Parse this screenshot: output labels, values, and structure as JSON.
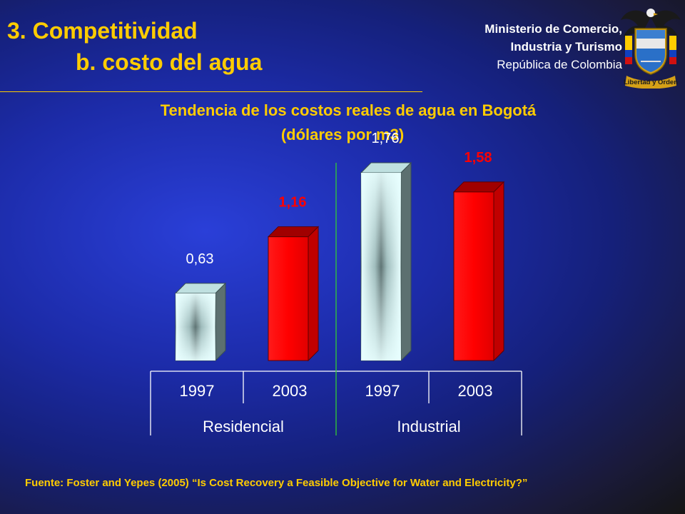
{
  "slide": {
    "title": "3. Competitividad",
    "subtitle": "b. costo del agua",
    "ministry_line1": "Ministerio de Comercio,",
    "ministry_line2": "Industria y Turismo",
    "ministry_line3": "República de Colombia",
    "crest_motto": "Libertad y Orden",
    "source": "Fuente: Foster and Yepes (2005) “Is Cost Recovery a Feasible Objective for Water and Electricity?”"
  },
  "colors": {
    "title": "#ffcc00",
    "series_1997": "#ccffff",
    "series_2003": "#ff0000",
    "label_2003": "#ff0000"
  },
  "chart_data": {
    "type": "bar",
    "title_line1": "Tendencia de los costos reales de agua en Bogotá",
    "title_line2": "(dólares por m3)",
    "groups": [
      "Residencial",
      "Industrial"
    ],
    "categories": [
      "1997",
      "2003",
      "1997",
      "2003"
    ],
    "values": [
      0.63,
      1.16,
      1.76,
      1.58
    ],
    "labels": [
      "0,63",
      "1,16",
      "1,76",
      "1,58"
    ],
    "grid": false,
    "ylim": [
      0,
      2.0
    ]
  }
}
